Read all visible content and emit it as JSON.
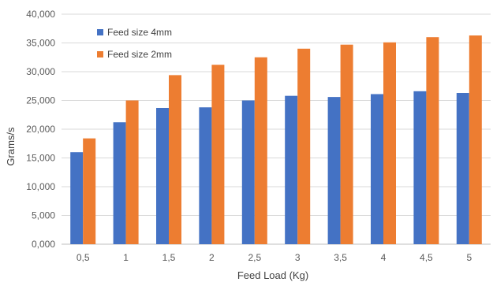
{
  "chart_data": {
    "type": "bar",
    "title": "",
    "xlabel": "Feed Load (Kg)",
    "ylabel": "Grams/s",
    "ylim": [
      0,
      40000
    ],
    "y_ticks": [
      "0,000",
      "5,000",
      "10,000",
      "15,000",
      "20,000",
      "25,000",
      "30,000",
      "35,000",
      "40,000"
    ],
    "categories": [
      "0,5",
      "1",
      "1,5",
      "2",
      "2,5",
      "3",
      "3,5",
      "4",
      "4,5",
      "5"
    ],
    "grid": "horizontal",
    "legend_position": "top-left",
    "series": [
      {
        "name": "Feed size 4mm",
        "color": "#4472C4",
        "values": [
          16000,
          21200,
          23700,
          23800,
          25000,
          25800,
          25600,
          26100,
          26600,
          26300
        ]
      },
      {
        "name": "Feed size 2mm",
        "color": "#ED7D31",
        "values": [
          18400,
          25000,
          29400,
          31200,
          32500,
          34000,
          34700,
          35100,
          36000,
          36300
        ]
      }
    ]
  }
}
